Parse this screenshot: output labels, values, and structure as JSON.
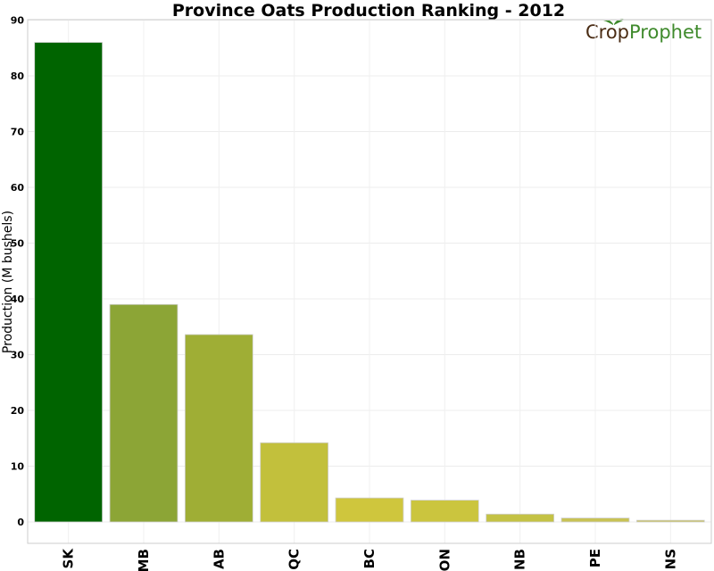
{
  "chart_data": {
    "type": "bar",
    "title": "Province Oats Production Ranking - 2012",
    "ylabel": "Production (M bushels)",
    "xlabel": "",
    "ylim": [
      0,
      90
    ],
    "yticks": [
      0,
      10,
      20,
      30,
      40,
      50,
      60,
      70,
      80,
      90
    ],
    "categories": [
      "SK",
      "MB",
      "AB",
      "QC",
      "BC",
      "ON",
      "NB",
      "PE",
      "NS"
    ],
    "values": [
      86,
      39,
      33.6,
      14.2,
      4.3,
      3.9,
      1.4,
      0.7,
      0.3
    ],
    "colors": [
      "#006400",
      "#8ca536",
      "#9fae35",
      "#c2c03c",
      "#cfc63d",
      "#cbc53e",
      "#c4c244",
      "#c8c254",
      "#c6bf5a"
    ],
    "grid": true
  },
  "logo": {
    "part1": "Crop",
    "part2": "Prophet",
    "color1": "#4a2c14",
    "color2": "#3f8a2c"
  }
}
